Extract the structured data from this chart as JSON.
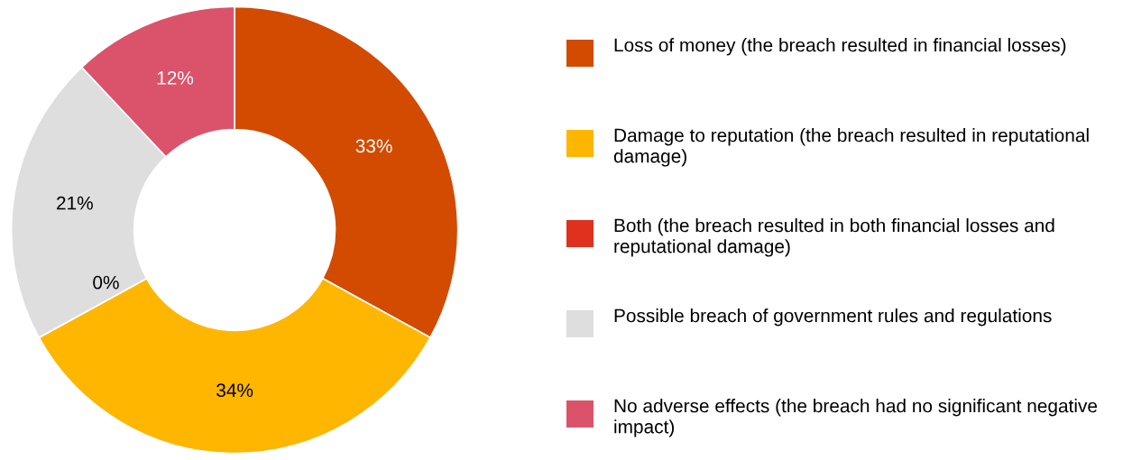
{
  "chart_data": {
    "type": "donut",
    "categories": [
      "Loss of money (the breach resulted in financial losses)",
      "Damage to reputation (the breach resulted in reputational damage)",
      "Both (the breach resulted in both financial losses and reputational damage)",
      "Possible breach of government rules and regulations",
      "No adverse effects (the breach had no significant negative impact)"
    ],
    "values": [
      33,
      34,
      0,
      21,
      12
    ],
    "colors": [
      "#d24b00",
      "#ffb600",
      "#e0301e",
      "#dedede",
      "#db536a"
    ],
    "value_labels": [
      "33%",
      "34%",
      "0%",
      "21%",
      "12%"
    ],
    "legend": "right"
  }
}
